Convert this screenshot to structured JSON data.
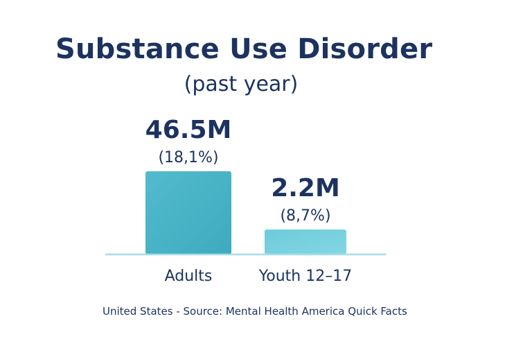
{
  "chart_data": {
    "type": "bar",
    "title": "Substance Use Disorder",
    "subtitle": "(past year)",
    "categories": [
      "Adults",
      "Youth 12–17"
    ],
    "values": [
      46.5,
      2.2
    ],
    "value_labels": [
      "46.5M",
      "2.2M"
    ],
    "percent_labels": [
      "(18,1%)",
      "(8,7%)"
    ],
    "bar_colors": [
      "#4bb6c9",
      "#78d2e0"
    ],
    "axis_line_color": "#a8dde6",
    "grid": false,
    "legend": "none"
  },
  "footer": {
    "source_text": "United States - Source: Mental Health America Quick Facts"
  }
}
